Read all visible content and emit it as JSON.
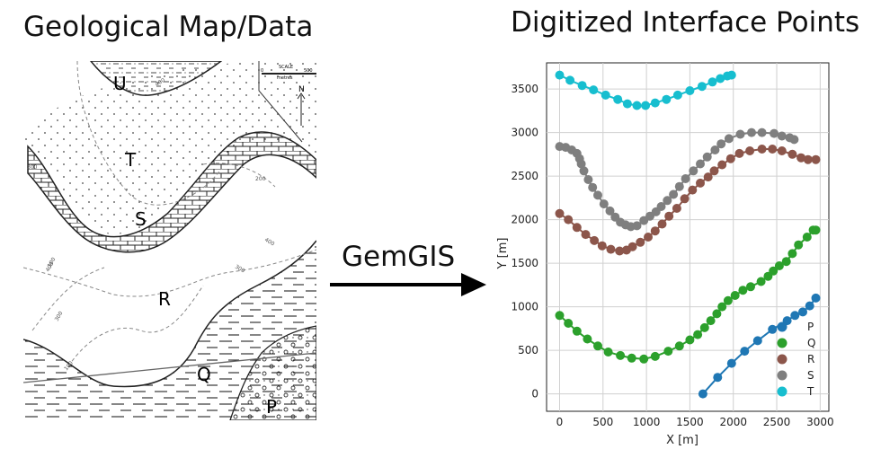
{
  "left_title": "Geological Map/Data",
  "right_title": "Digitized Interface Points",
  "arrow_label": "GemGIS",
  "map": {
    "units": [
      "U",
      "T",
      "S",
      "R",
      "Q",
      "P"
    ],
    "scale_title": "SCALE",
    "scale_unit": "metres",
    "scale_end": "500",
    "scale_start": "0",
    "north": "N",
    "contour_labels": [
      "400",
      "300",
      "100",
      "200",
      "400",
      "300",
      "400",
      "300",
      "100"
    ]
  },
  "chart_data": {
    "type": "line",
    "title": "",
    "xlabel": "X [m]",
    "ylabel": "Y [m]",
    "xlim": [
      -150,
      3100
    ],
    "ylim": [
      -200,
      3800
    ],
    "xticks": [
      0,
      500,
      1000,
      1500,
      2000,
      2500,
      3000
    ],
    "yticks": [
      0,
      500,
      1000,
      1500,
      2000,
      2500,
      3000,
      3500
    ],
    "grid": true,
    "legend_position": "bottom-right",
    "series": [
      {
        "name": "P",
        "color": "#1f77b4",
        "points": [
          [
            1650,
            0
          ],
          [
            1820,
            190
          ],
          [
            1980,
            350
          ],
          [
            2130,
            490
          ],
          [
            2280,
            610
          ],
          [
            2450,
            740
          ],
          [
            2620,
            840
          ],
          [
            2710,
            900
          ],
          [
            2800,
            940
          ],
          [
            2880,
            1010
          ],
          [
            2950,
            1100
          ]
        ]
      },
      {
        "name": "Q",
        "color": "#2ca02c",
        "points": [
          [
            0,
            900
          ],
          [
            100,
            810
          ],
          [
            200,
            720
          ],
          [
            320,
            630
          ],
          [
            440,
            550
          ],
          [
            560,
            480
          ],
          [
            700,
            440
          ],
          [
            830,
            410
          ],
          [
            970,
            400
          ],
          [
            1100,
            430
          ],
          [
            1250,
            490
          ],
          [
            1380,
            550
          ],
          [
            1500,
            620
          ],
          [
            1590,
            680
          ],
          [
            1670,
            760
          ],
          [
            1740,
            840
          ],
          [
            1810,
            920
          ],
          [
            1870,
            1000
          ],
          [
            1940,
            1070
          ],
          [
            2020,
            1130
          ],
          [
            2110,
            1190
          ],
          [
            2200,
            1230
          ],
          [
            2320,
            1290
          ],
          [
            2400,
            1350
          ],
          [
            2460,
            1410
          ],
          [
            2530,
            1470
          ],
          [
            2610,
            1520
          ],
          [
            2680,
            1610
          ],
          [
            2750,
            1710
          ],
          [
            2850,
            1800
          ],
          [
            2920,
            1880
          ],
          [
            2950,
            1880
          ]
        ]
      },
      {
        "name": "R",
        "color": "#8c564b",
        "points": [
          [
            0,
            2070
          ],
          [
            100,
            2000
          ],
          [
            200,
            1910
          ],
          [
            300,
            1830
          ],
          [
            400,
            1760
          ],
          [
            490,
            1700
          ],
          [
            590,
            1660
          ],
          [
            690,
            1640
          ],
          [
            770,
            1650
          ],
          [
            840,
            1690
          ],
          [
            930,
            1740
          ],
          [
            1020,
            1800
          ],
          [
            1100,
            1870
          ],
          [
            1180,
            1950
          ],
          [
            1260,
            2040
          ],
          [
            1350,
            2130
          ],
          [
            1440,
            2240
          ],
          [
            1530,
            2340
          ],
          [
            1620,
            2420
          ],
          [
            1710,
            2490
          ],
          [
            1780,
            2560
          ],
          [
            1870,
            2630
          ],
          [
            1970,
            2700
          ],
          [
            2070,
            2760
          ],
          [
            2190,
            2790
          ],
          [
            2330,
            2810
          ],
          [
            2450,
            2810
          ],
          [
            2560,
            2790
          ],
          [
            2680,
            2750
          ],
          [
            2780,
            2710
          ],
          [
            2860,
            2690
          ],
          [
            2950,
            2690
          ]
        ]
      },
      {
        "name": "S",
        "color": "#7f7f7f",
        "points": [
          [
            0,
            2840
          ],
          [
            70,
            2830
          ],
          [
            140,
            2800
          ],
          [
            200,
            2760
          ],
          [
            230,
            2700
          ],
          [
            250,
            2640
          ],
          [
            280,
            2560
          ],
          [
            330,
            2460
          ],
          [
            380,
            2370
          ],
          [
            440,
            2280
          ],
          [
            510,
            2180
          ],
          [
            580,
            2100
          ],
          [
            640,
            2030
          ],
          [
            700,
            1970
          ],
          [
            760,
            1940
          ],
          [
            820,
            1920
          ],
          [
            890,
            1930
          ],
          [
            970,
            1990
          ],
          [
            1040,
            2040
          ],
          [
            1110,
            2090
          ],
          [
            1170,
            2150
          ],
          [
            1240,
            2220
          ],
          [
            1310,
            2290
          ],
          [
            1380,
            2380
          ],
          [
            1450,
            2470
          ],
          [
            1540,
            2560
          ],
          [
            1620,
            2640
          ],
          [
            1700,
            2720
          ],
          [
            1790,
            2800
          ],
          [
            1860,
            2870
          ],
          [
            1950,
            2930
          ],
          [
            2080,
            2980
          ],
          [
            2210,
            3000
          ],
          [
            2330,
            3000
          ],
          [
            2470,
            2990
          ],
          [
            2560,
            2960
          ],
          [
            2650,
            2940
          ],
          [
            2700,
            2920
          ]
        ]
      },
      {
        "name": "T",
        "color": "#17becf",
        "points": [
          [
            0,
            3660
          ],
          [
            120,
            3600
          ],
          [
            260,
            3540
          ],
          [
            390,
            3490
          ],
          [
            530,
            3430
          ],
          [
            670,
            3380
          ],
          [
            780,
            3330
          ],
          [
            890,
            3310
          ],
          [
            990,
            3310
          ],
          [
            1100,
            3340
          ],
          [
            1230,
            3380
          ],
          [
            1360,
            3430
          ],
          [
            1500,
            3480
          ],
          [
            1640,
            3530
          ],
          [
            1760,
            3580
          ],
          [
            1850,
            3620
          ],
          [
            1930,
            3650
          ],
          [
            1980,
            3660
          ]
        ]
      }
    ]
  }
}
